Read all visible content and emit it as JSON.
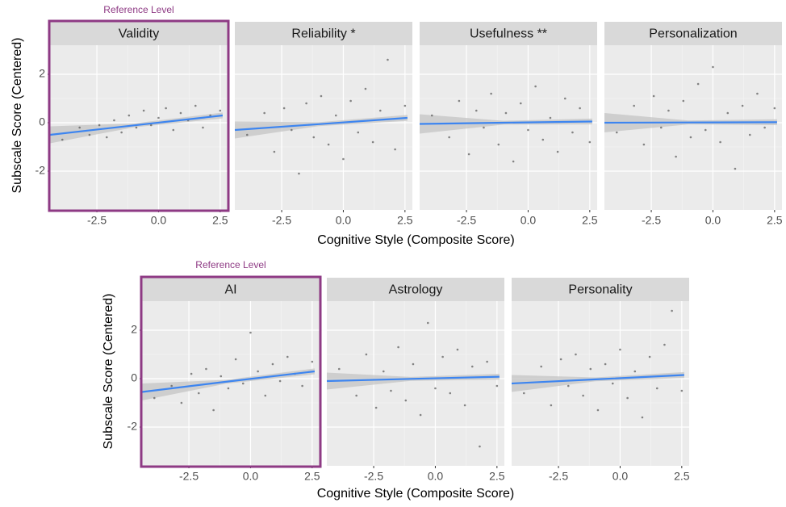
{
  "chart_data": [
    {
      "type": "scatter",
      "y_label": "Subscale Score (Centered)",
      "x_label": "Cognitive Style (Composite Score)",
      "annotation": "Reference Level",
      "reference_panel": 0,
      "xlim": [
        -4.4,
        2.8
      ],
      "xticks": [
        -2.5,
        {
          "value": 0,
          "label": "0.0"
        },
        2.5
      ],
      "ylim": [
        -3.6,
        3.2
      ],
      "yticks": [
        -2,
        0,
        2
      ],
      "grid": true,
      "point_color": "#555555",
      "line_color": "#3d85f0",
      "band_color": "#c4c4c4",
      "highlight_color": "#8e3a84",
      "x": [
        -3.9,
        -3.2,
        -2.8,
        -2.4,
        -2.1,
        -1.8,
        -1.5,
        -1.2,
        -0.9,
        -0.6,
        -0.3,
        0,
        0.3,
        0.6,
        0.9,
        1.2,
        1.5,
        1.8,
        2.1,
        2.5
      ],
      "panels": [
        {
          "title": "Validity",
          "values": [
            -0.7,
            -0.2,
            -0.5,
            -0.1,
            -0.6,
            0.1,
            -0.4,
            0.3,
            -0.2,
            0.5,
            -0.1,
            0.2,
            0.6,
            -0.3,
            0.4,
            0.1,
            0.7,
            -0.2,
            0.3,
            0.5
          ],
          "fit": {
            "x": [
              -4.4,
              -1,
              2.6
            ],
            "y": [
              -0.5,
              -0.11,
              0.3
            ],
            "lower": [
              -0.85,
              -0.19,
              0.18
            ],
            "upper": [
              -0.15,
              -0.03,
              0.42
            ]
          }
        },
        {
          "title": "Reliability *",
          "values": [
            -0.5,
            0.4,
            -1.2,
            0.6,
            -0.3,
            -2.1,
            0.8,
            -0.6,
            1.1,
            -0.9,
            0.3,
            -1.5,
            0.9,
            -0.4,
            1.4,
            -0.8,
            0.5,
            2.6,
            -1.1,
            0.7
          ],
          "fit": {
            "x": [
              -4.4,
              -1,
              2.6
            ],
            "y": [
              -0.3,
              -0.06,
              0.2
            ],
            "lower": [
              -0.65,
              -0.14,
              0.08
            ],
            "upper": [
              0.05,
              0.02,
              0.32
            ]
          }
        },
        {
          "title": "Usefulness **",
          "values": [
            0.3,
            -0.6,
            0.9,
            -1.3,
            0.5,
            -0.2,
            1.2,
            -0.9,
            0.4,
            -1.6,
            0.8,
            -0.3,
            1.5,
            -0.7,
            0.2,
            -1.2,
            1.0,
            -0.4,
            0.6,
            -0.8
          ],
          "fit": {
            "x": [
              -4.4,
              -1,
              2.6
            ],
            "y": [
              -0.05,
              0,
              0.05
            ],
            "lower": [
              -0.45,
              -0.08,
              -0.07
            ],
            "upper": [
              0.35,
              0.08,
              0.17
            ]
          }
        },
        {
          "title": "Personalization",
          "values": [
            -0.4,
            0.7,
            -0.9,
            1.1,
            -0.2,
            0.5,
            -1.4,
            0.9,
            -0.6,
            1.6,
            -0.3,
            2.3,
            -0.8,
            0.4,
            -1.9,
            0.7,
            -0.5,
            1.2,
            -0.2,
            0.6
          ],
          "fit": {
            "x": [
              -4.4,
              -1,
              2.6
            ],
            "y": [
              0,
              0.01,
              0.02
            ],
            "lower": [
              -0.4,
              -0.07,
              -0.1
            ],
            "upper": [
              0.4,
              0.09,
              0.14
            ]
          }
        }
      ]
    },
    {
      "type": "scatter",
      "y_label": "Subscale Score (Centered)",
      "x_label": "Cognitive Style (Composite Score)",
      "annotation": "Reference Level",
      "reference_panel": 0,
      "xlim": [
        -4.4,
        2.8
      ],
      "xticks": [
        -2.5,
        {
          "value": 0,
          "label": "0.0"
        },
        2.5
      ],
      "ylim": [
        -3.6,
        3.2
      ],
      "yticks": [
        -2,
        0,
        2
      ],
      "grid": true,
      "point_color": "#555555",
      "line_color": "#3d85f0",
      "band_color": "#c4c4c4",
      "highlight_color": "#8e3a84",
      "x": [
        -3.9,
        -3.2,
        -2.8,
        -2.4,
        -2.1,
        -1.8,
        -1.5,
        -1.2,
        -0.9,
        -0.6,
        -0.3,
        0,
        0.3,
        0.6,
        0.9,
        1.2,
        1.5,
        1.8,
        2.1,
        2.5
      ],
      "panels": [
        {
          "title": "AI",
          "values": [
            -0.8,
            -0.3,
            -1.0,
            0.2,
            -0.6,
            0.4,
            -1.3,
            0.1,
            -0.4,
            0.8,
            -0.2,
            1.9,
            0.3,
            -0.7,
            0.6,
            -0.1,
            0.9,
            0.2,
            -0.3,
            0.7
          ],
          "fit": {
            "x": [
              -4.4,
              -1,
              2.6
            ],
            "y": [
              -0.55,
              -0.13,
              0.3
            ],
            "lower": [
              -0.9,
              -0.21,
              0.18
            ],
            "upper": [
              -0.2,
              -0.05,
              0.42
            ]
          }
        },
        {
          "title": "Astrology",
          "values": [
            0.4,
            -0.7,
            1.0,
            -1.2,
            0.3,
            -0.5,
            1.3,
            -0.9,
            0.6,
            -1.5,
            2.3,
            -0.4,
            0.9,
            -0.6,
            1.2,
            -1.1,
            0.5,
            -2.8,
            0.7,
            -0.3
          ],
          "fit": {
            "x": [
              -4.4,
              -1,
              2.6
            ],
            "y": [
              -0.1,
              -0.01,
              0.08
            ],
            "lower": [
              -0.45,
              -0.09,
              -0.04
            ],
            "upper": [
              0.25,
              0.07,
              0.2
            ]
          }
        },
        {
          "title": "Personality",
          "values": [
            -0.6,
            0.5,
            -1.1,
            0.8,
            -0.3,
            1.0,
            -0.7,
            0.4,
            -1.3,
            0.6,
            -0.2,
            1.2,
            -0.8,
            0.3,
            -1.6,
            0.9,
            -0.4,
            1.4,
            2.8,
            -0.5
          ],
          "fit": {
            "x": [
              -4.4,
              -1,
              2.6
            ],
            "y": [
              -0.2,
              -0.03,
              0.15
            ],
            "lower": [
              -0.55,
              -0.11,
              0.03
            ],
            "upper": [
              0.15,
              0.05,
              0.27
            ]
          }
        }
      ]
    }
  ]
}
